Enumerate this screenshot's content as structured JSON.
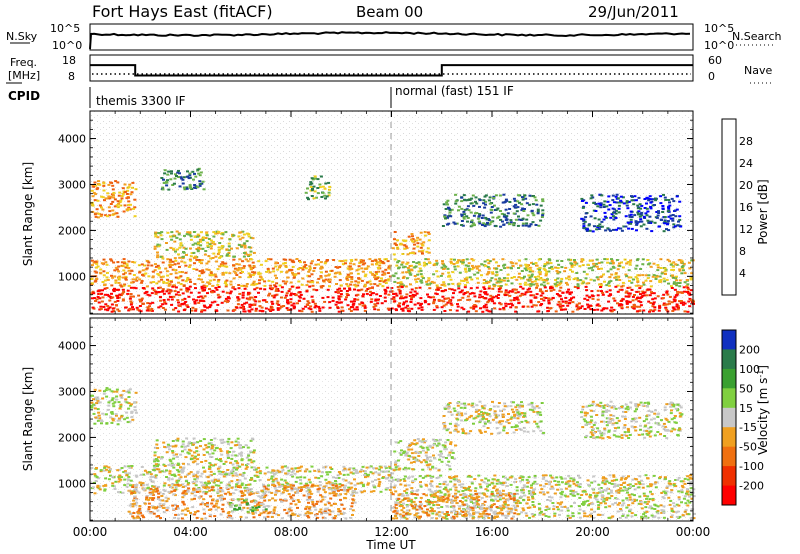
{
  "header": {
    "radar": "Fort Hays East (fitACF)",
    "beam": "Beam 00",
    "date": "29/Jun/2011"
  },
  "noise_panel": {
    "left_label": "N.Sky",
    "right_label": "N.Search",
    "left_ticks": [
      "10^5",
      "10^0"
    ],
    "right_ticks": [
      "10^5",
      "10^0"
    ]
  },
  "freq_panel": {
    "left_label_line1": "Freq.",
    "left_label_line2": "[MHz]",
    "right_label": "Nave",
    "left_ticks": [
      "18",
      "8"
    ],
    "right_ticks": [
      "60",
      "0"
    ],
    "freq_segments": [
      {
        "start_hr": 0.0,
        "end_hr": 1.8,
        "freq_mhz": 14.5
      },
      {
        "start_hr": 1.8,
        "end_hr": 14.0,
        "freq_mhz": 10.5
      },
      {
        "start_hr": 14.0,
        "end_hr": 24.0,
        "freq_mhz": 14.5
      }
    ]
  },
  "cpid_panel": {
    "label": "CPID",
    "programs": [
      {
        "name": "themis 3300 IF",
        "start_hr": 0.0
      },
      {
        "name": "normal (fast) 151 IF",
        "start_hr": 12.0
      }
    ]
  },
  "x_axis": {
    "title": "Time UT",
    "ticks": [
      "00:00",
      "04:00",
      "08:00",
      "12:00",
      "16:00",
      "20:00",
      "00:00"
    ],
    "tick_hours": [
      0,
      4,
      8,
      12,
      16,
      20,
      24
    ]
  },
  "chart_data": [
    {
      "type": "heatmap",
      "title": "",
      "ylabel": "Slant Range [km]",
      "yticks": [
        1000,
        2000,
        3000,
        4000
      ],
      "ylim": [
        180,
        4600
      ],
      "xlim_hours": [
        0,
        24
      ],
      "colorbar": {
        "label": "Power [dB]",
        "ticks": [
          "4",
          "8",
          "12",
          "16",
          "20",
          "24",
          "28"
        ],
        "colors": [
          "#0000ff",
          "#1a3ca0",
          "#2a7b4a",
          "#6db34a",
          "#f0d020",
          "#f5a020",
          "#f06010",
          "#ff0000"
        ]
      },
      "regions": [
        {
          "t0": 0.0,
          "t1": 1.8,
          "r0": 2300,
          "r1": 3100,
          "level": 5
        },
        {
          "t0": 2.8,
          "t1": 4.5,
          "r0": 2900,
          "r1": 3400,
          "level": 2
        },
        {
          "t0": 2.5,
          "t1": 6.5,
          "r0": 1400,
          "r1": 2000,
          "level": 4
        },
        {
          "t0": 0.0,
          "t1": 12.0,
          "r0": 800,
          "r1": 1400,
          "level": 5
        },
        {
          "t0": 0.0,
          "t1": 12.0,
          "r0": 250,
          "r1": 800,
          "level": 7
        },
        {
          "t0": 8.5,
          "t1": 9.5,
          "r0": 2700,
          "r1": 3200,
          "level": 3
        },
        {
          "t0": 12.0,
          "t1": 13.5,
          "r0": 1500,
          "r1": 2000,
          "level": 5
        },
        {
          "t0": 12.0,
          "t1": 24.0,
          "r0": 800,
          "r1": 1400,
          "level": 4
        },
        {
          "t0": 12.0,
          "t1": 24.0,
          "r0": 250,
          "r1": 800,
          "level": 7
        },
        {
          "t0": 14.0,
          "t1": 18.0,
          "r0": 2100,
          "r1": 2800,
          "level": 2
        },
        {
          "t0": 19.5,
          "t1": 23.5,
          "r0": 2000,
          "r1": 2800,
          "level": 1
        }
      ]
    },
    {
      "type": "heatmap",
      "title": "",
      "ylabel": "Slant Range [km]",
      "yticks": [
        1000,
        2000,
        3000,
        4000
      ],
      "ylim": [
        180,
        4600
      ],
      "xlim_hours": [
        0,
        24
      ],
      "colorbar": {
        "label": "Velocity [m s^-1]",
        "ticks": [
          "200",
          "100",
          "50",
          "15",
          "-15",
          "-50",
          "-100",
          "-200"
        ],
        "colors": [
          "#1030c0",
          "#2a7b4a",
          "#3aa030",
          "#80d040",
          "#c8c8c8",
          "#f0a020",
          "#f07010",
          "#f03000",
          "#ff0000"
        ]
      },
      "regions": [
        {
          "t0": 0.0,
          "t1": 1.8,
          "r0": 2300,
          "r1": 3100,
          "level": 4
        },
        {
          "t0": 2.5,
          "t1": 6.5,
          "r0": 1400,
          "r1": 2000,
          "level": 4
        },
        {
          "t0": 0.0,
          "t1": 12.0,
          "r0": 800,
          "r1": 1400,
          "level": 4
        },
        {
          "t0": 1.5,
          "t1": 10.5,
          "r0": 250,
          "r1": 1000,
          "level": 5
        },
        {
          "t0": 5.5,
          "t1": 7.0,
          "r0": 400,
          "r1": 700,
          "level": 3
        },
        {
          "t0": 12.0,
          "t1": 14.5,
          "r0": 1300,
          "r1": 2000,
          "level": 4
        },
        {
          "t0": 14.0,
          "t1": 18.0,
          "r0": 2100,
          "r1": 2800,
          "level": 4
        },
        {
          "t0": 19.5,
          "t1": 23.5,
          "r0": 2000,
          "r1": 2800,
          "level": 4
        },
        {
          "t0": 12.0,
          "t1": 24.0,
          "r0": 250,
          "r1": 1200,
          "level": 4
        },
        {
          "t0": 12.0,
          "t1": 17.0,
          "r0": 250,
          "r1": 800,
          "level": 5
        }
      ]
    }
  ]
}
